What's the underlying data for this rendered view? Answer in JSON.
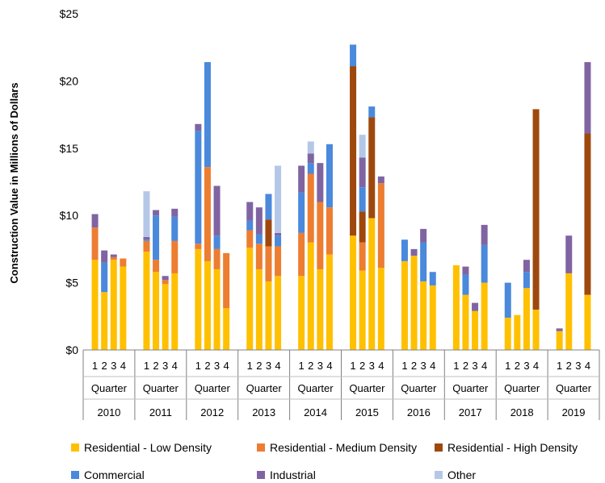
{
  "chart_data": {
    "type": "bar",
    "stacked": true,
    "ylabel": "Construction Value in Millions of Dollars",
    "ylim": [
      0,
      25
    ],
    "yticks": [
      "$0",
      "$5",
      "$10",
      "$15",
      "$20",
      "$25"
    ],
    "quarter_label": "Quarter",
    "quarter_ticks": [
      "1",
      "2",
      "3",
      "4"
    ],
    "grid": false,
    "legend_position": "bottom",
    "years": [
      {
        "year": "2010",
        "quarters": [
          {
            "q": "1",
            "values": [
              6.7,
              2.4,
              0,
              0,
              1.0,
              0
            ]
          },
          {
            "q": "2",
            "values": [
              4.3,
              0,
              0,
              2.2,
              0.9,
              0
            ]
          },
          {
            "q": "3",
            "values": [
              6.7,
              0.2,
              0,
              0,
              0.2,
              0
            ]
          },
          {
            "q": "4",
            "values": [
              6.2,
              0.6,
              0,
              0,
              0,
              0
            ]
          }
        ]
      },
      {
        "year": "2011",
        "quarters": [
          {
            "q": "1",
            "values": [
              7.3,
              0.8,
              0,
              0.1,
              0.2,
              3.4
            ]
          },
          {
            "q": "2",
            "values": [
              5.8,
              0.9,
              0,
              3.3,
              0.4,
              0
            ]
          },
          {
            "q": "3",
            "values": [
              4.9,
              0.3,
              0,
              0,
              0.3,
              0
            ]
          },
          {
            "q": "4",
            "values": [
              5.7,
              2.4,
              0,
              1.8,
              0.6,
              0
            ]
          }
        ]
      },
      {
        "year": "2012",
        "quarters": [
          {
            "q": "1",
            "values": [
              7.5,
              0.4,
              0,
              8.4,
              0.5,
              0
            ]
          },
          {
            "q": "2",
            "values": [
              6.6,
              7.0,
              0,
              7.8,
              0,
              0
            ]
          },
          {
            "q": "3",
            "values": [
              6.0,
              1.5,
              0,
              1.0,
              3.7,
              0
            ]
          },
          {
            "q": "4",
            "values": [
              3.1,
              4.1,
              0,
              0,
              0,
              0
            ]
          }
        ]
      },
      {
        "year": "2013",
        "quarters": [
          {
            "q": "1",
            "values": [
              7.6,
              1.3,
              0,
              0.7,
              1.4,
              0
            ]
          },
          {
            "q": "2",
            "values": [
              6.0,
              1.9,
              0,
              0.7,
              2.0,
              0
            ]
          },
          {
            "q": "3",
            "values": [
              5.1,
              2.6,
              2.0,
              1.9,
              0,
              0
            ]
          },
          {
            "q": "4",
            "values": [
              5.5,
              2.2,
              0,
              0.8,
              0.2,
              5.0
            ]
          }
        ]
      },
      {
        "year": "2014",
        "quarters": [
          {
            "q": "1",
            "values": [
              5.5,
              3.2,
              0,
              3.0,
              2.0,
              0
            ]
          },
          {
            "q": "2",
            "values": [
              8.0,
              5.1,
              0,
              0.8,
              0.7,
              0.9
            ]
          },
          {
            "q": "3",
            "values": [
              6.0,
              5.0,
              0,
              0,
              2.9,
              0
            ]
          },
          {
            "q": "4",
            "values": [
              7.1,
              3.5,
              0,
              4.7,
              0,
              0
            ]
          }
        ]
      },
      {
        "year": "2015",
        "quarters": [
          {
            "q": "1",
            "values": [
              8.5,
              0,
              12.6,
              1.6,
              0,
              0
            ]
          },
          {
            "q": "2",
            "values": [
              5.9,
              2.1,
              2.3,
              1.8,
              2.2,
              1.7
            ]
          },
          {
            "q": "3",
            "values": [
              9.8,
              0,
              7.5,
              0.8,
              0,
              0
            ]
          },
          {
            "q": "4",
            "values": [
              6.1,
              6.3,
              0,
              0,
              0.5,
              0
            ]
          }
        ]
      },
      {
        "year": "2016",
        "quarters": [
          {
            "q": "1",
            "values": [
              6.6,
              0,
              0,
              1.6,
              0,
              0
            ]
          },
          {
            "q": "2",
            "values": [
              7.0,
              0,
              0,
              0,
              0.5,
              0
            ]
          },
          {
            "q": "3",
            "values": [
              5.1,
              0,
              0,
              2.9,
              1.0,
              0
            ]
          },
          {
            "q": "4",
            "values": [
              4.8,
              0,
              0,
              1.0,
              0,
              0
            ]
          }
        ]
      },
      {
        "year": "2017",
        "quarters": [
          {
            "q": "1",
            "values": [
              6.3,
              0,
              0,
              0,
              0,
              0
            ]
          },
          {
            "q": "2",
            "values": [
              4.1,
              0,
              0,
              1.5,
              0.6,
              0
            ]
          },
          {
            "q": "3",
            "values": [
              2.9,
              0,
              0,
              0,
              0.6,
              0
            ]
          },
          {
            "q": "4",
            "values": [
              5.0,
              0,
              0,
              2.8,
              1.5,
              0
            ]
          }
        ]
      },
      {
        "year": "2018",
        "quarters": [
          {
            "q": "1",
            "values": [
              2.4,
              0,
              0,
              2.6,
              0,
              0
            ]
          },
          {
            "q": "2",
            "values": [
              2.6,
              0,
              0,
              0,
              0,
              0
            ]
          },
          {
            "q": "3",
            "values": [
              4.6,
              0,
              0,
              1.2,
              0.9,
              0
            ]
          },
          {
            "q": "4",
            "values": [
              3.0,
              0,
              14.9,
              0,
              0,
              0
            ]
          }
        ]
      },
      {
        "year": "2019",
        "quarters": [
          {
            "q": "1",
            "values": [
              1.4,
              0,
              0,
              0,
              0.2,
              0
            ]
          },
          {
            "q": "2",
            "values": [
              5.7,
              0,
              0,
              0,
              2.8,
              0
            ]
          },
          {
            "q": "3",
            "values": [
              0,
              0,
              0,
              0,
              0,
              0
            ]
          },
          {
            "q": "4",
            "values": [
              4.1,
              0,
              12.0,
              0,
              5.3,
              0
            ]
          }
        ]
      }
    ],
    "series": [
      {
        "name": "Residential - Low Density",
        "color": "#FFC000"
      },
      {
        "name": "Residential - Medium Density",
        "color": "#ED7D31"
      },
      {
        "name": "Residential - High Density",
        "color": "#9E480E"
      },
      {
        "name": "Commercial",
        "color": "#4A89DC"
      },
      {
        "name": "Industrial",
        "color": "#8064A2"
      },
      {
        "name": "Other",
        "color": "#B4C7E7"
      }
    ]
  }
}
